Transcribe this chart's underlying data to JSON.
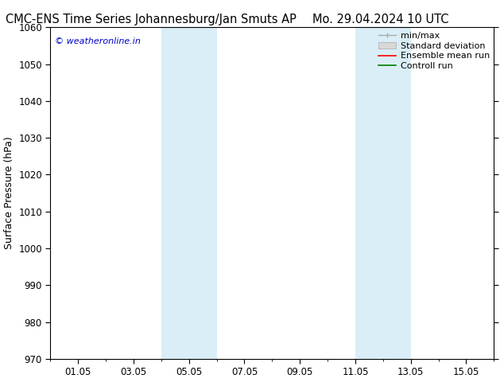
{
  "title_left": "CMC-ENS Time Series Johannesburg/Jan Smuts AP",
  "title_right": "Mo. 29.04.2024 10 UTC",
  "ylabel": "Surface Pressure (hPa)",
  "watermark": "© weatheronline.in",
  "ylim": [
    970,
    1060
  ],
  "yticks": [
    970,
    980,
    990,
    1000,
    1010,
    1020,
    1030,
    1040,
    1050,
    1060
  ],
  "xtick_labels": [
    "01.05",
    "03.05",
    "05.05",
    "07.05",
    "09.05",
    "11.05",
    "13.05",
    "15.05"
  ],
  "xtick_positions": [
    3,
    5,
    7,
    9,
    11,
    13,
    15,
    17
  ],
  "xlim": [
    2,
    18
  ],
  "shaded_regions": [
    {
      "x_start": 6,
      "x_end": 8,
      "color": "#daeef7"
    },
    {
      "x_start": 13,
      "x_end": 15,
      "color": "#daeef7"
    }
  ],
  "legend_entries": [
    {
      "label": "min/max",
      "color": "#aaaaaa",
      "style": "line_with_caps"
    },
    {
      "label": "Standard deviation",
      "color": "#cccccc",
      "style": "bar"
    },
    {
      "label": "Ensemble mean run",
      "color": "red",
      "style": "line"
    },
    {
      "label": "Controll run",
      "color": "green",
      "style": "line"
    }
  ],
  "background_color": "#ffffff",
  "plot_bg_color": "#ffffff",
  "watermark_color": "#0000cc",
  "title_fontsize": 10.5,
  "ylabel_fontsize": 9,
  "tick_fontsize": 8.5,
  "legend_fontsize": 8
}
